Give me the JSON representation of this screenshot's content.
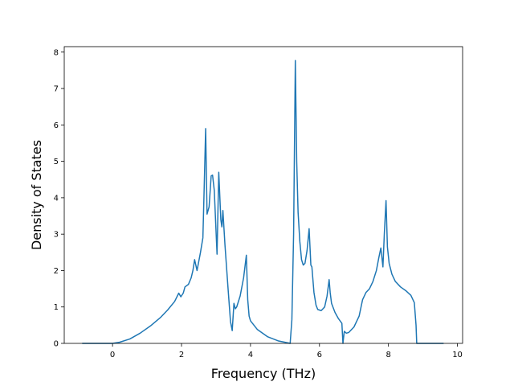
{
  "chart_data": {
    "type": "line",
    "title": "",
    "xlabel": "Frequency (THz)",
    "ylabel": "Density of States",
    "xlim": [
      -1.4,
      10.15
    ],
    "ylim": [
      0,
      8.15
    ],
    "xticks": [
      0,
      2,
      4,
      6,
      8,
      10
    ],
    "yticks": [
      0,
      1,
      2,
      3,
      4,
      5,
      6,
      7,
      8
    ],
    "grid": false,
    "legend": "none",
    "line_color": "#1f77b4",
    "series": [
      {
        "x": [
          -0.88,
          0.0,
          0.2,
          0.5,
          0.8,
          1.1,
          1.4,
          1.6,
          1.8,
          1.92,
          1.98,
          2.05,
          2.1,
          2.2,
          2.28,
          2.33,
          2.38,
          2.45,
          2.55,
          2.62,
          2.65,
          2.7,
          2.74,
          2.8,
          2.86,
          2.9,
          2.95,
          3.03,
          3.08,
          3.14,
          3.17,
          3.2,
          3.26,
          3.35,
          3.42,
          3.47,
          3.52,
          3.56,
          3.6,
          3.7,
          3.8,
          3.88,
          3.92,
          3.96,
          4.0,
          4.2,
          4.5,
          4.8,
          5.0,
          5.15,
          5.2,
          5.25,
          5.3,
          5.34,
          5.38,
          5.43,
          5.48,
          5.53,
          5.58,
          5.64,
          5.7,
          5.75,
          5.78,
          5.84,
          5.9,
          5.95,
          6.05,
          6.15,
          6.22,
          6.28,
          6.31,
          6.35,
          6.45,
          6.55,
          6.65,
          6.68,
          6.72,
          6.78,
          6.85,
          7.0,
          7.15,
          7.25,
          7.35,
          7.45,
          7.55,
          7.65,
          7.72,
          7.78,
          7.84,
          7.88,
          7.93,
          7.97,
          8.02,
          8.1,
          8.2,
          8.35,
          8.5,
          8.65,
          8.75,
          8.8,
          8.82,
          9.2,
          9.6
        ],
        "y": [
          0,
          0,
          0.03,
          0.12,
          0.28,
          0.48,
          0.72,
          0.92,
          1.15,
          1.38,
          1.28,
          1.38,
          1.55,
          1.62,
          1.8,
          2.0,
          2.3,
          2.0,
          2.5,
          2.9,
          4.0,
          5.9,
          3.55,
          3.75,
          4.6,
          4.62,
          4.2,
          2.45,
          4.7,
          3.4,
          3.2,
          3.65,
          2.7,
          1.5,
          0.6,
          0.35,
          1.1,
          0.95,
          1.0,
          1.3,
          1.8,
          2.42,
          1.2,
          0.75,
          0.62,
          0.38,
          0.18,
          0.07,
          0.03,
          0.0,
          0.65,
          3.0,
          7.77,
          5.0,
          3.6,
          2.8,
          2.3,
          2.15,
          2.2,
          2.55,
          3.15,
          2.15,
          2.1,
          1.4,
          1.05,
          0.93,
          0.9,
          1.0,
          1.3,
          1.75,
          1.4,
          1.1,
          0.85,
          0.68,
          0.55,
          0.0,
          0.33,
          0.28,
          0.3,
          0.45,
          0.75,
          1.2,
          1.4,
          1.5,
          1.7,
          2.0,
          2.35,
          2.62,
          2.1,
          3.0,
          3.92,
          2.65,
          2.2,
          1.9,
          1.7,
          1.55,
          1.45,
          1.32,
          1.12,
          0.5,
          0.0,
          0.0,
          0.0
        ]
      }
    ]
  }
}
